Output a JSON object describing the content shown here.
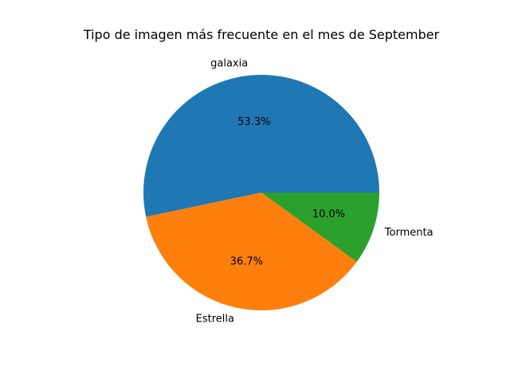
{
  "chart_data": {
    "type": "pie",
    "title": "Tipo de imagen más frecuente en el mes de September",
    "categories": [
      "galaxia",
      "Estrella",
      "Tormenta"
    ],
    "values": [
      53.3,
      36.7,
      10.0
    ],
    "percent_labels": [
      "53.3%",
      "36.7%",
      "10.0%"
    ],
    "colors": [
      "#1f77b4",
      "#ff7f0e",
      "#2ca02c"
    ],
    "start_angle_deg": 0,
    "direction": "counterclockwise"
  }
}
